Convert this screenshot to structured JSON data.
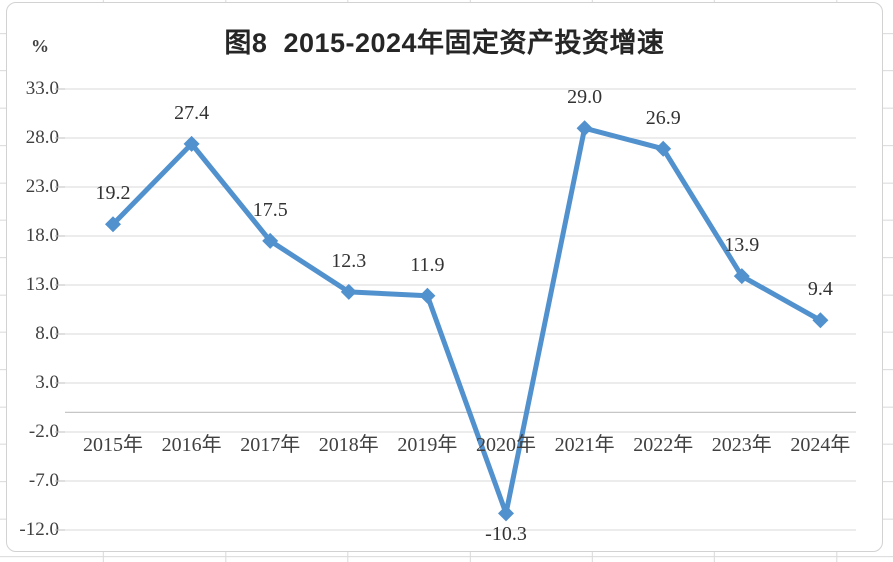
{
  "chart_data": {
    "type": "line",
    "title": "图8  2015-2024年固定资产投资增速",
    "y_axis_unit": "%",
    "categories": [
      "2015年",
      "2016年",
      "2017年",
      "2018年",
      "2019年",
      "2020年",
      "2021年",
      "2022年",
      "2023年",
      "2024年"
    ],
    "values": [
      19.2,
      27.4,
      17.5,
      12.3,
      11.9,
      -10.3,
      29.0,
      26.9,
      13.9,
      9.4
    ],
    "data_labels": [
      "19.2",
      "27.4",
      "17.5",
      "12.3",
      "11.9",
      "-10.3",
      "29.0",
      "26.9",
      "13.9",
      "9.4"
    ],
    "y_tick_labels": [
      "33.0",
      "28.0",
      "23.0",
      "18.0",
      "13.0",
      "8.0",
      "3.0",
      "-2.0",
      "-7.0",
      "-12.0"
    ],
    "ylim": [
      -12.0,
      33.0
    ],
    "y_step": 5.0,
    "grid": true,
    "legend": "none",
    "marker": "diamond",
    "colors": {
      "line": "#5191CE",
      "gridline": "#D9D9D9",
      "axis_line": "#C6C6C6",
      "tick": "#BFBFBF",
      "label_text": "#404040",
      "title_text": "#262626"
    }
  }
}
